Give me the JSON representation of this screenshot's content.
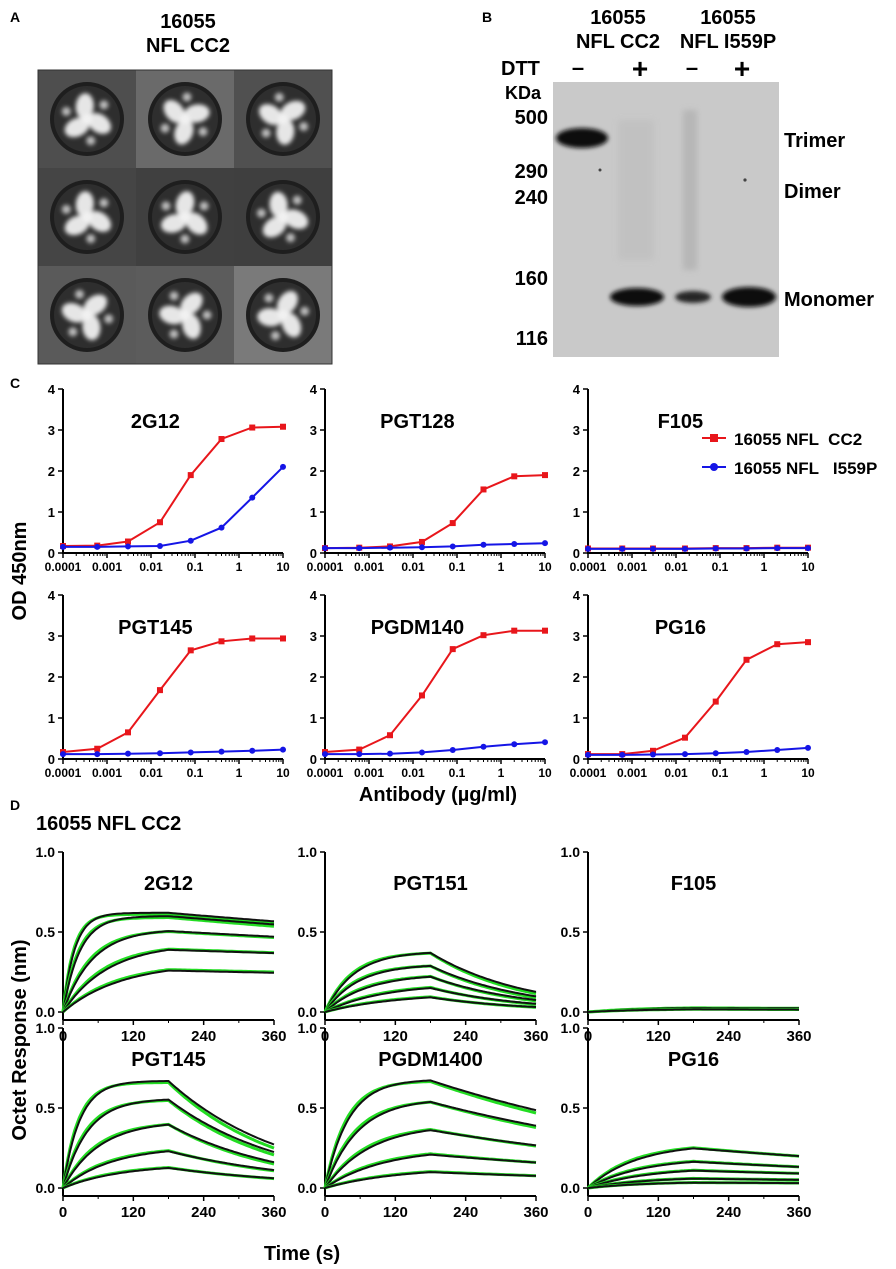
{
  "colors": {
    "red": "#e8161b",
    "blue": "#1515e6",
    "fit": "#22dd22",
    "trace": "#111111",
    "gel_bg": "#c9c9c9",
    "cryo_bg": "#555555"
  },
  "panel_a": {
    "label": "A",
    "title_line1": "16055",
    "title_line2": "NFL CC2"
  },
  "panel_b": {
    "label": "B",
    "header_left_1": "16055",
    "header_left_2": "NFL CC2",
    "header_right_1": "16055",
    "header_right_2": "NFL I559P",
    "dtt_label": "DTT",
    "dtt_signs": [
      "–",
      "+",
      "–",
      "+"
    ],
    "kda_label": "KDa",
    "markers": [
      "500",
      "290",
      "240",
      "160",
      "116"
    ],
    "band_labels": [
      "Trimer",
      "Dimer",
      "Monomer"
    ]
  },
  "panel_c": {
    "label": "C",
    "ylabel": "OD 450nm",
    "xlabel": "Antibody (µg/ml)",
    "legend": [
      "16055 NFL  CC2",
      "16055 NFL   I559P"
    ]
  },
  "panel_d": {
    "label": "D",
    "subtitle": "16055 NFL CC2",
    "ylabel": "Octet Response (nm)",
    "xlabel": "Time (s)"
  },
  "chart_data": [
    {
      "type": "line",
      "panel": "C",
      "title": "2G12",
      "x_scale": "log",
      "x": [
        0.0001,
        0.0006,
        0.003,
        0.016,
        0.08,
        0.4,
        2,
        10
      ],
      "xticks": [
        "0.0001",
        "0.001",
        "0.01",
        "0.1",
        "1",
        "10"
      ],
      "yticks": [
        "0",
        "1",
        "2",
        "3",
        "4"
      ],
      "ylim": [
        0,
        4
      ],
      "series": [
        {
          "name": "16055 NFL  CC2",
          "values": [
            0.17,
            0.18,
            0.28,
            0.75,
            1.9,
            2.78,
            3.06,
            3.08
          ]
        },
        {
          "name": "16055 NFL   I559P",
          "values": [
            0.15,
            0.15,
            0.16,
            0.17,
            0.3,
            0.62,
            1.35,
            2.1
          ]
        }
      ]
    },
    {
      "type": "line",
      "panel": "C",
      "title": "PGT128",
      "x_scale": "log",
      "x": [
        0.0001,
        0.0006,
        0.003,
        0.016,
        0.08,
        0.4,
        2,
        10
      ],
      "xticks": [
        "0.0001",
        "0.001",
        "0.01",
        "0.1",
        "1",
        "10"
      ],
      "yticks": [
        "0",
        "1",
        "2",
        "3",
        "4"
      ],
      "ylim": [
        0,
        4
      ],
      "series": [
        {
          "name": "16055 NFL  CC2",
          "values": [
            0.12,
            0.13,
            0.16,
            0.27,
            0.73,
            1.55,
            1.87,
            1.9
          ]
        },
        {
          "name": "16055 NFL   I559P",
          "values": [
            0.12,
            0.12,
            0.13,
            0.14,
            0.16,
            0.2,
            0.22,
            0.24
          ]
        }
      ]
    },
    {
      "type": "line",
      "panel": "C",
      "title": "F105",
      "x_scale": "log",
      "x": [
        0.0001,
        0.0006,
        0.003,
        0.016,
        0.08,
        0.4,
        2,
        10
      ],
      "xticks": [
        "0.0001",
        "0.001",
        "0.01",
        "0.1",
        "1",
        "10"
      ],
      "yticks": [
        "0",
        "1",
        "2",
        "3",
        "4"
      ],
      "ylim": [
        0,
        4
      ],
      "series": [
        {
          "name": "16055 NFL  CC2",
          "values": [
            0.11,
            0.11,
            0.11,
            0.11,
            0.12,
            0.12,
            0.13,
            0.13
          ]
        },
        {
          "name": "16055 NFL   I559P",
          "values": [
            0.1,
            0.1,
            0.1,
            0.1,
            0.11,
            0.11,
            0.12,
            0.12
          ]
        }
      ]
    },
    {
      "type": "line",
      "panel": "C",
      "title": "PGT145",
      "x_scale": "log",
      "x": [
        0.0001,
        0.0006,
        0.003,
        0.016,
        0.08,
        0.4,
        2,
        10
      ],
      "xticks": [
        "0.0001",
        "0.001",
        "0.01",
        "0.1",
        "1",
        "10"
      ],
      "yticks": [
        "0",
        "1",
        "2",
        "3",
        "4"
      ],
      "ylim": [
        0,
        4
      ],
      "series": [
        {
          "name": "16055 NFL  CC2",
          "values": [
            0.17,
            0.25,
            0.65,
            1.68,
            2.65,
            2.87,
            2.94,
            2.94
          ]
        },
        {
          "name": "16055 NFL   I559P",
          "values": [
            0.12,
            0.12,
            0.13,
            0.14,
            0.16,
            0.18,
            0.2,
            0.23
          ]
        }
      ]
    },
    {
      "type": "line",
      "panel": "C",
      "title": "PGDM140",
      "x_scale": "log",
      "x": [
        0.0001,
        0.0006,
        0.003,
        0.016,
        0.08,
        0.4,
        2,
        10
      ],
      "xticks": [
        "0.0001",
        "0.001",
        "0.01",
        "0.1",
        "1",
        "10"
      ],
      "yticks": [
        "0",
        "1",
        "2",
        "3",
        "4"
      ],
      "ylim": [
        0,
        4
      ],
      "series": [
        {
          "name": "16055 NFL  CC2",
          "values": [
            0.17,
            0.23,
            0.58,
            1.55,
            2.68,
            3.02,
            3.13,
            3.13
          ]
        },
        {
          "name": "16055 NFL   I559P",
          "values": [
            0.12,
            0.12,
            0.13,
            0.16,
            0.22,
            0.3,
            0.36,
            0.41
          ]
        }
      ]
    },
    {
      "type": "line",
      "panel": "C",
      "title": "PG16",
      "x_scale": "log",
      "x": [
        0.0001,
        0.0006,
        0.003,
        0.016,
        0.08,
        0.4,
        2,
        10
      ],
      "xticks": [
        "0.0001",
        "0.001",
        "0.01",
        "0.1",
        "1",
        "10"
      ],
      "yticks": [
        "0",
        "1",
        "2",
        "3",
        "4"
      ],
      "ylim": [
        0,
        4
      ],
      "series": [
        {
          "name": "16055 NFL  CC2",
          "values": [
            0.12,
            0.12,
            0.2,
            0.52,
            1.4,
            2.42,
            2.8,
            2.85
          ]
        },
        {
          "name": "16055 NFL   I559P",
          "values": [
            0.1,
            0.1,
            0.11,
            0.12,
            0.14,
            0.17,
            0.22,
            0.27
          ]
        }
      ]
    },
    {
      "type": "line",
      "panel": "D",
      "title": "2G12",
      "xlim": [
        0,
        360
      ],
      "ylim": [
        -0.05,
        1.0
      ],
      "xticks": [
        "0",
        "120",
        "240",
        "360"
      ],
      "yticks": [
        "0.0",
        "0.5",
        "1.0"
      ],
      "association_end_s": 180,
      "traces": [
        {
          "plateau": 0.62,
          "k_on": 0.05,
          "k_off": 0.0005
        },
        {
          "plateau": 0.6,
          "k_on": 0.035,
          "k_off": 0.0005
        },
        {
          "plateau": 0.52,
          "k_on": 0.02,
          "k_off": 0.0004
        },
        {
          "plateau": 0.43,
          "k_on": 0.013,
          "k_off": 0.0003
        },
        {
          "plateau": 0.31,
          "k_on": 0.01,
          "k_off": 0.0003
        }
      ]
    },
    {
      "type": "line",
      "panel": "D",
      "title": "PGT151",
      "xlim": [
        0,
        360
      ],
      "ylim": [
        -0.05,
        1.0
      ],
      "xticks": [
        "0",
        "120",
        "240",
        "360"
      ],
      "yticks": [
        "0.0",
        "0.5",
        "1.0"
      ],
      "association_end_s": 180,
      "traces": [
        {
          "plateau": 0.38,
          "k_on": 0.02,
          "k_off": 0.006
        },
        {
          "plateau": 0.3,
          "k_on": 0.018,
          "k_off": 0.006
        },
        {
          "plateau": 0.24,
          "k_on": 0.014,
          "k_off": 0.006
        },
        {
          "plateau": 0.18,
          "k_on": 0.01,
          "k_off": 0.006
        },
        {
          "plateau": 0.12,
          "k_on": 0.008,
          "k_off": 0.006
        }
      ]
    },
    {
      "type": "line",
      "panel": "D",
      "title": "F105",
      "xlim": [
        0,
        360
      ],
      "ylim": [
        -0.05,
        1.0
      ],
      "xticks": [
        "0",
        "120",
        "240",
        "360"
      ],
      "yticks": [
        "0.0",
        "0.5",
        "1.0"
      ],
      "association_end_s": 180,
      "traces": [
        {
          "plateau": 0.03,
          "k_on": 0.01,
          "k_off": 0.0005
        },
        {
          "plateau": 0.02,
          "k_on": 0.01,
          "k_off": 0.0005
        }
      ]
    },
    {
      "type": "line",
      "panel": "D",
      "title": "PGT145",
      "xlim": [
        0,
        360
      ],
      "ylim": [
        -0.05,
        1.0
      ],
      "xticks": [
        "0",
        "120",
        "240",
        "360"
      ],
      "yticks": [
        "0.0",
        "0.5",
        "1.0"
      ],
      "association_end_s": 180,
      "traces": [
        {
          "plateau": 0.67,
          "k_on": 0.035,
          "k_off": 0.005
        },
        {
          "plateau": 0.56,
          "k_on": 0.024,
          "k_off": 0.005
        },
        {
          "plateau": 0.42,
          "k_on": 0.016,
          "k_off": 0.005
        },
        {
          "plateau": 0.26,
          "k_on": 0.012,
          "k_off": 0.004
        },
        {
          "plateau": 0.15,
          "k_on": 0.01,
          "k_off": 0.004
        }
      ]
    },
    {
      "type": "line",
      "panel": "D",
      "title": "PGDM1400",
      "xlim": [
        0,
        360
      ],
      "ylim": [
        -0.05,
        1.0
      ],
      "xticks": [
        "0",
        "120",
        "240",
        "360"
      ],
      "yticks": [
        "0.0",
        "0.5",
        "1.0"
      ],
      "association_end_s": 180,
      "traces": [
        {
          "plateau": 0.68,
          "k_on": 0.025,
          "k_off": 0.0018
        },
        {
          "plateau": 0.56,
          "k_on": 0.018,
          "k_off": 0.0018
        },
        {
          "plateau": 0.4,
          "k_on": 0.013,
          "k_off": 0.0017
        },
        {
          "plateau": 0.25,
          "k_on": 0.01,
          "k_off": 0.0015
        },
        {
          "plateau": 0.13,
          "k_on": 0.008,
          "k_off": 0.0015
        }
      ]
    },
    {
      "type": "line",
      "panel": "D",
      "title": "PG16",
      "xlim": [
        0,
        360
      ],
      "ylim": [
        -0.05,
        1.0
      ],
      "xticks": [
        "0",
        "120",
        "240",
        "360"
      ],
      "yticks": [
        "0.0",
        "0.5",
        "1.0"
      ],
      "association_end_s": 180,
      "traces": [
        {
          "plateau": 0.28,
          "k_on": 0.012,
          "k_off": 0.0012
        },
        {
          "plateau": 0.19,
          "k_on": 0.011,
          "k_off": 0.0012
        },
        {
          "plateau": 0.13,
          "k_on": 0.01,
          "k_off": 0.001
        },
        {
          "plateau": 0.07,
          "k_on": 0.01,
          "k_off": 0.0008
        },
        {
          "plateau": 0.04,
          "k_on": 0.01,
          "k_off": 0.0005
        }
      ]
    }
  ]
}
